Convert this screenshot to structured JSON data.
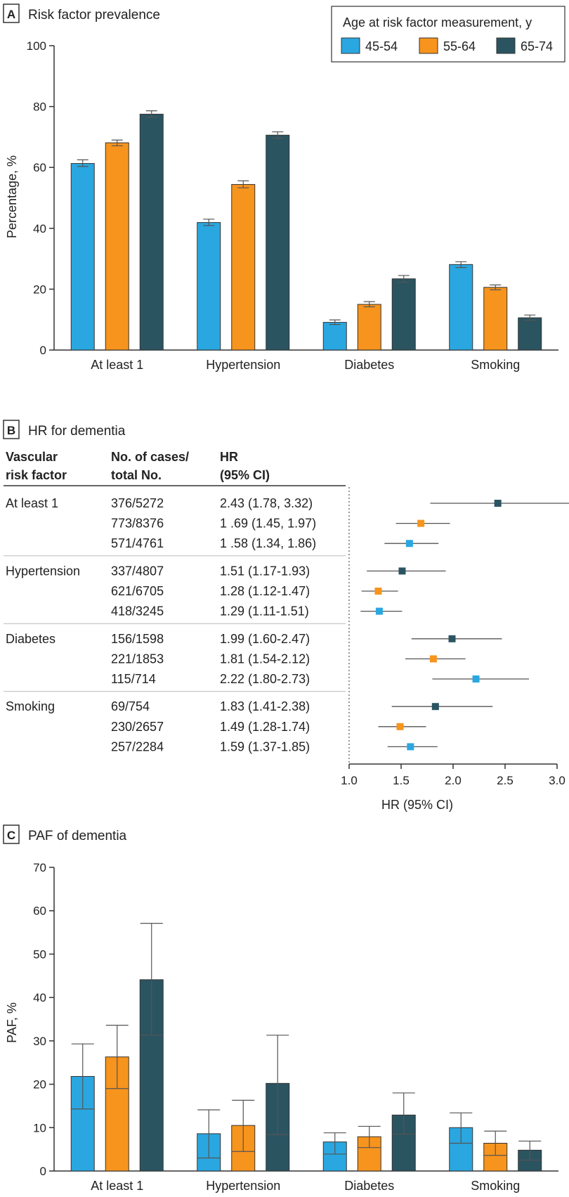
{
  "colors": {
    "g1": "#2aa7e0",
    "g2": "#f7941d",
    "g3": "#2b5461",
    "axis": "#333333",
    "err": "#555555",
    "sep": "#bbbbbb"
  },
  "legend": {
    "title": "Age at risk factor measurement, y",
    "items": [
      "45-54",
      "55-64",
      "65-74"
    ]
  },
  "chart_data": [
    {
      "panel": "A",
      "type": "bar",
      "title": "Risk factor prevalence",
      "ylabel": "Percentage, %",
      "ylim": [
        0,
        100
      ],
      "yticks": [
        0,
        20,
        40,
        60,
        80,
        100
      ],
      "categories": [
        "At least 1",
        "Hypertension",
        "Diabetes",
        "Smoking"
      ],
      "series": [
        {
          "name": "45-54",
          "values": [
            61.3,
            41.9,
            9.1,
            28.1
          ],
          "err_low": [
            60.3,
            40.9,
            8.4,
            27.1
          ],
          "err_high": [
            62.5,
            43.0,
            9.9,
            29.0
          ]
        },
        {
          "name": "55-64",
          "values": [
            68.1,
            54.4,
            15.0,
            20.6
          ],
          "err_low": [
            67.1,
            53.3,
            14.2,
            19.8
          ],
          "err_high": [
            69.0,
            55.6,
            15.9,
            21.4
          ]
        },
        {
          "name": "65-74",
          "values": [
            77.5,
            70.6,
            23.4,
            10.6
          ],
          "err_low": [
            76.5,
            69.6,
            22.3,
            9.8
          ],
          "err_high": [
            78.6,
            71.7,
            24.5,
            11.5
          ]
        }
      ]
    },
    {
      "panel": "B",
      "type": "scatter",
      "title": "HR for dementia",
      "columns": {
        "factor": [
          "Vascular",
          "risk factor"
        ],
        "cases": [
          "No. of cases/",
          "total No."
        ],
        "hr": [
          "HR",
          "(95% CI)"
        ]
      },
      "xlabel": "HR (95% CI)",
      "xlim": [
        1.0,
        3.0
      ],
      "xticks": [
        "1.0",
        "1.5",
        "2.0",
        "2.5",
        "3.0"
      ],
      "groups": [
        {
          "factor": "At least 1",
          "rows": [
            {
              "cases": "376/5272",
              "hr_text": "2.43 (1.78, 3.32)",
              "hr": 2.43,
              "lo": 1.78,
              "hi": 3.32,
              "series": "65-74"
            },
            {
              "cases": "773/8376",
              "hr_text": "1 .69 (1.45, 1.97)",
              "hr": 1.69,
              "lo": 1.45,
              "hi": 1.97,
              "series": "55-64"
            },
            {
              "cases": "571/4761",
              "hr_text": "1 .58 (1.34, 1.86)",
              "hr": 1.58,
              "lo": 1.34,
              "hi": 1.86,
              "series": "45-54"
            }
          ]
        },
        {
          "factor": "Hypertension",
          "rows": [
            {
              "cases": "337/4807",
              "hr_text": "1.51 (1.17-1.93)",
              "hr": 1.51,
              "lo": 1.17,
              "hi": 1.93,
              "series": "65-74"
            },
            {
              "cases": "621/6705",
              "hr_text": "1.28 (1.12-1.47)",
              "hr": 1.28,
              "lo": 1.12,
              "hi": 1.47,
              "series": "55-64"
            },
            {
              "cases": "418/3245",
              "hr_text": "1.29 (1.11-1.51)",
              "hr": 1.29,
              "lo": 1.11,
              "hi": 1.51,
              "series": "45-54"
            }
          ]
        },
        {
          "factor": "Diabetes",
          "rows": [
            {
              "cases": "156/1598",
              "hr_text": "1.99 (1.60-2.47)",
              "hr": 1.99,
              "lo": 1.6,
              "hi": 2.47,
              "series": "65-74"
            },
            {
              "cases": "221/1853",
              "hr_text": "1.81 (1.54-2.12)",
              "hr": 1.81,
              "lo": 1.54,
              "hi": 2.12,
              "series": "55-64"
            },
            {
              "cases": "115/714",
              "hr_text": "2.22 (1.80-2.73)",
              "hr": 2.22,
              "lo": 1.8,
              "hi": 2.73,
              "series": "45-54"
            }
          ]
        },
        {
          "factor": "Smoking",
          "rows": [
            {
              "cases": "69/754",
              "hr_text": "1.83 (1.41-2.38)",
              "hr": 1.83,
              "lo": 1.41,
              "hi": 2.38,
              "series": "65-74"
            },
            {
              "cases": "230/2657",
              "hr_text": "1.49 (1.28-1.74)",
              "hr": 1.49,
              "lo": 1.28,
              "hi": 1.74,
              "series": "55-64"
            },
            {
              "cases": "257/2284",
              "hr_text": "1.59 (1.37-1.85)",
              "hr": 1.59,
              "lo": 1.37,
              "hi": 1.85,
              "series": "45-54"
            }
          ]
        }
      ]
    },
    {
      "panel": "C",
      "type": "bar",
      "title": "PAF of dementia",
      "ylabel": "PAF, %",
      "ylim": [
        0,
        70
      ],
      "yticks": [
        0,
        10,
        20,
        30,
        40,
        50,
        60,
        70
      ],
      "categories": [
        "At least 1",
        "Hypertension",
        "Diabetes",
        "Smoking"
      ],
      "series": [
        {
          "name": "45-54",
          "values": [
            21.8,
            8.6,
            6.7,
            10.0
          ],
          "err_low": [
            14.3,
            3.0,
            3.9,
            6.4
          ],
          "err_high": [
            29.3,
            14.1,
            8.8,
            13.4
          ]
        },
        {
          "name": "55-64",
          "values": [
            26.3,
            10.5,
            7.9,
            6.4
          ],
          "err_low": [
            19.0,
            4.5,
            5.4,
            3.6
          ],
          "err_high": [
            33.6,
            16.3,
            10.3,
            9.2
          ]
        },
        {
          "name": "65-74",
          "values": [
            44.1,
            20.2,
            12.9,
            4.8
          ],
          "err_low": [
            31.3,
            8.4,
            8.5,
            2.5
          ],
          "err_high": [
            57.1,
            31.3,
            18.0,
            6.9
          ]
        }
      ]
    }
  ]
}
